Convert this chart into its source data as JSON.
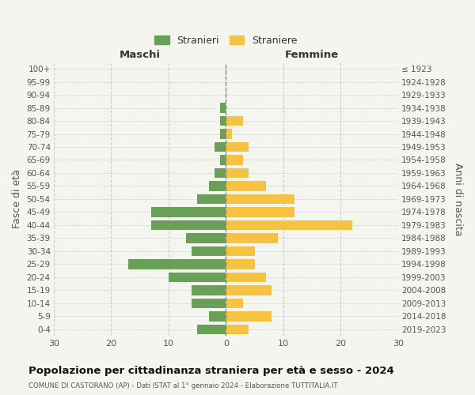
{
  "age_groups": [
    "0-4",
    "5-9",
    "10-14",
    "15-19",
    "20-24",
    "25-29",
    "30-34",
    "35-39",
    "40-44",
    "45-49",
    "50-54",
    "55-59",
    "60-64",
    "65-69",
    "70-74",
    "75-79",
    "80-84",
    "85-89",
    "90-94",
    "95-99",
    "100+"
  ],
  "birth_years": [
    "2019-2023",
    "2014-2018",
    "2009-2013",
    "2004-2008",
    "1999-2003",
    "1994-1998",
    "1989-1993",
    "1984-1988",
    "1979-1983",
    "1974-1978",
    "1969-1973",
    "1964-1968",
    "1959-1963",
    "1954-1958",
    "1949-1953",
    "1944-1948",
    "1939-1943",
    "1934-1938",
    "1929-1933",
    "1924-1928",
    "≤ 1923"
  ],
  "males": [
    5,
    3,
    6,
    6,
    10,
    17,
    6,
    7,
    13,
    13,
    5,
    3,
    2,
    1,
    2,
    1,
    1,
    1,
    0,
    0,
    0
  ],
  "females": [
    4,
    8,
    3,
    8,
    7,
    5,
    5,
    9,
    22,
    12,
    12,
    7,
    4,
    3,
    4,
    1,
    3,
    0,
    0,
    0,
    0
  ],
  "male_color": "#6a9f5a",
  "female_color": "#f5c242",
  "bg_color": "#f5f5f0",
  "grid_color": "#cccccc",
  "title": "Popolazione per cittadinanza straniera per età e sesso - 2024",
  "subtitle": "COMUNE DI CASTORANO (AP) - Dati ISTAT al 1° gennaio 2024 - Elaborazione TUTTITALIA.IT",
  "xlabel_left": "Maschi",
  "xlabel_right": "Femmine",
  "ylabel_left": "Fasce di età",
  "ylabel_right": "Anni di nascita",
  "legend_male": "Stranieri",
  "legend_female": "Straniere",
  "xlim": 30
}
